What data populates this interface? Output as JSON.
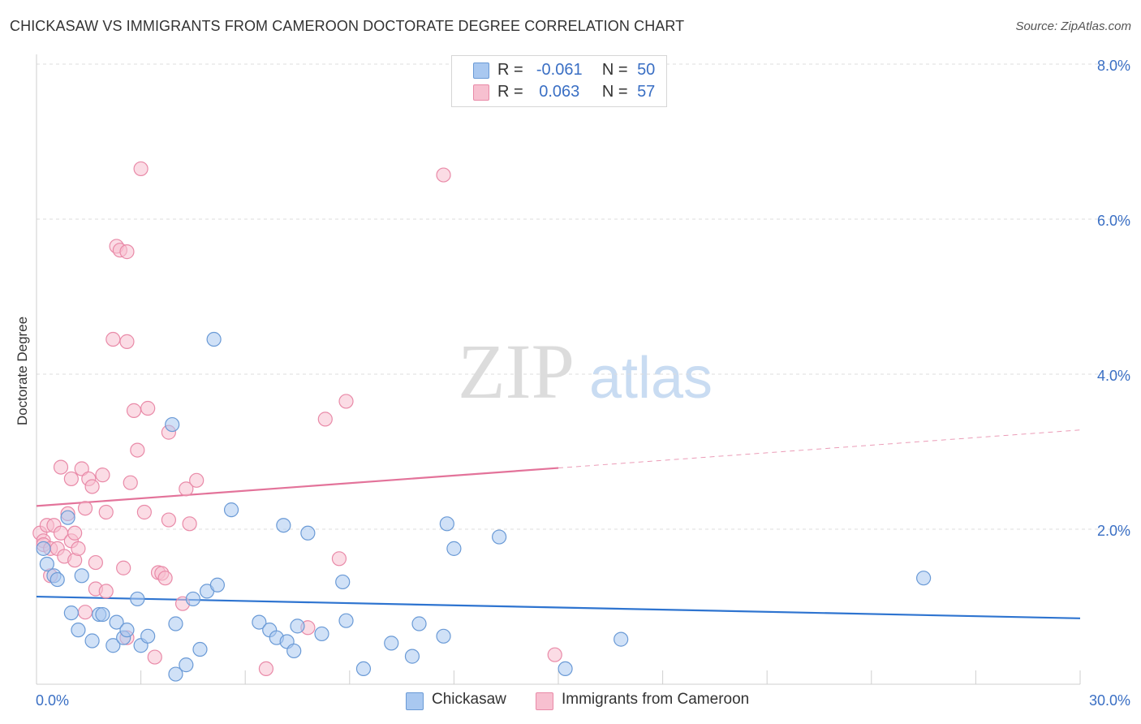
{
  "header": {
    "title": "CHICKASAW VS IMMIGRANTS FROM CAMEROON DOCTORATE DEGREE CORRELATION CHART",
    "source": "Source: ZipAtlas.com"
  },
  "colors": {
    "blue_fill": "#a9c8f0",
    "blue_stroke": "#6a9ad6",
    "blue_line": "#2e74d0",
    "pink_fill": "#f7c0d0",
    "pink_stroke": "#e98aa8",
    "pink_line": "#e3739a",
    "axis_text": "#3a6fc4",
    "grid": "#dddddd"
  },
  "legend": {
    "blue": {
      "r_label": "R =",
      "r_value": "-0.061",
      "n_label": "N =",
      "n_value": "50"
    },
    "pink": {
      "r_label": "R =",
      "r_value": "0.063",
      "n_label": "N =",
      "n_value": "57"
    }
  },
  "watermark": {
    "zip": "ZIP",
    "atlas": "atlas"
  },
  "chart_data": {
    "type": "scatter",
    "title": "CHICKASAW VS IMMIGRANTS FROM CAMEROON DOCTORATE DEGREE CORRELATION CHART",
    "xlabel": "",
    "ylabel": "Doctorate Degree",
    "xlim": [
      0,
      30
    ],
    "ylim": [
      0,
      8
    ],
    "x_tick_labels": [
      "0.0%",
      "30.0%"
    ],
    "y_ticks": [
      2,
      4,
      6,
      8
    ],
    "y_tick_labels": [
      "2.0%",
      "4.0%",
      "6.0%",
      "8.0%"
    ],
    "grid": true,
    "legend_position": "top-center",
    "series": [
      {
        "name": "Chickasaw",
        "color": "blue",
        "trend": {
          "x": [
            0,
            30
          ],
          "y": [
            1.13,
            0.85
          ],
          "dashed_from": null
        },
        "points": [
          [
            0.2,
            1.75
          ],
          [
            0.3,
            1.55
          ],
          [
            0.5,
            1.4
          ],
          [
            0.6,
            1.35
          ],
          [
            0.9,
            2.15
          ],
          [
            1.0,
            0.92
          ],
          [
            1.2,
            0.7
          ],
          [
            1.3,
            1.4
          ],
          [
            1.6,
            0.56
          ],
          [
            1.8,
            0.9
          ],
          [
            1.9,
            0.9
          ],
          [
            2.2,
            0.5
          ],
          [
            2.3,
            0.8
          ],
          [
            2.5,
            0.6
          ],
          [
            2.6,
            0.7
          ],
          [
            2.9,
            1.1
          ],
          [
            3.0,
            0.5
          ],
          [
            3.2,
            0.62
          ],
          [
            3.9,
            3.35
          ],
          [
            4.0,
            0.13
          ],
          [
            4.0,
            0.78
          ],
          [
            4.3,
            0.25
          ],
          [
            4.5,
            1.1
          ],
          [
            4.7,
            0.45
          ],
          [
            4.9,
            1.2
          ],
          [
            5.1,
            4.45
          ],
          [
            5.2,
            1.28
          ],
          [
            5.6,
            2.25
          ],
          [
            6.4,
            0.8
          ],
          [
            6.7,
            0.7
          ],
          [
            6.9,
            0.6
          ],
          [
            7.1,
            2.05
          ],
          [
            7.2,
            0.55
          ],
          [
            7.4,
            0.43
          ],
          [
            7.5,
            0.75
          ],
          [
            7.8,
            1.95
          ],
          [
            8.2,
            0.65
          ],
          [
            8.8,
            1.32
          ],
          [
            8.9,
            0.82
          ],
          [
            9.4,
            0.2
          ],
          [
            10.2,
            0.53
          ],
          [
            10.8,
            0.36
          ],
          [
            11.0,
            0.78
          ],
          [
            11.7,
            0.62
          ],
          [
            11.8,
            2.07
          ],
          [
            12.0,
            1.75
          ],
          [
            13.3,
            1.9
          ],
          [
            15.2,
            0.2
          ],
          [
            16.8,
            0.58
          ],
          [
            25.5,
            1.37
          ]
        ]
      },
      {
        "name": "Immigrants from Cameroon",
        "color": "pink",
        "trend": {
          "x": [
            0,
            30
          ],
          "y": [
            2.3,
            3.28
          ],
          "dashed_from": 15.0
        },
        "points": [
          [
            0.1,
            1.95
          ],
          [
            0.2,
            1.85
          ],
          [
            0.2,
            1.8
          ],
          [
            0.3,
            2.05
          ],
          [
            0.4,
            1.75
          ],
          [
            0.4,
            1.4
          ],
          [
            0.5,
            2.05
          ],
          [
            0.6,
            1.75
          ],
          [
            0.7,
            1.95
          ],
          [
            0.7,
            2.8
          ],
          [
            0.8,
            1.65
          ],
          [
            0.9,
            2.2
          ],
          [
            1.0,
            1.85
          ],
          [
            1.0,
            2.65
          ],
          [
            1.1,
            1.95
          ],
          [
            1.1,
            1.6
          ],
          [
            1.2,
            1.75
          ],
          [
            1.3,
            2.78
          ],
          [
            1.4,
            0.93
          ],
          [
            1.4,
            2.27
          ],
          [
            1.5,
            2.65
          ],
          [
            1.6,
            2.55
          ],
          [
            1.7,
            1.57
          ],
          [
            1.7,
            1.23
          ],
          [
            1.9,
            2.7
          ],
          [
            2.0,
            1.2
          ],
          [
            2.0,
            2.22
          ],
          [
            2.2,
            4.45
          ],
          [
            2.3,
            5.65
          ],
          [
            2.4,
            5.6
          ],
          [
            2.6,
            0.6
          ],
          [
            2.6,
            4.42
          ],
          [
            2.5,
            1.5
          ],
          [
            2.6,
            5.58
          ],
          [
            2.7,
            2.6
          ],
          [
            2.8,
            3.53
          ],
          [
            2.9,
            3.02
          ],
          [
            3.0,
            6.65
          ],
          [
            3.1,
            2.22
          ],
          [
            3.2,
            3.56
          ],
          [
            3.4,
            0.35
          ],
          [
            3.5,
            1.44
          ],
          [
            3.6,
            1.43
          ],
          [
            3.7,
            1.37
          ],
          [
            3.8,
            3.25
          ],
          [
            3.8,
            2.12
          ],
          [
            4.2,
            1.04
          ],
          [
            4.3,
            2.52
          ],
          [
            4.4,
            2.07
          ],
          [
            4.6,
            2.63
          ],
          [
            6.6,
            0.2
          ],
          [
            7.8,
            0.73
          ],
          [
            8.3,
            3.42
          ],
          [
            8.7,
            1.62
          ],
          [
            8.9,
            3.65
          ],
          [
            11.7,
            6.57
          ],
          [
            14.9,
            0.38
          ]
        ]
      }
    ]
  },
  "bottom_legend": {
    "items": [
      {
        "label": "Chickasaw",
        "color": "blue"
      },
      {
        "label": "Immigrants from Cameroon",
        "color": "pink"
      }
    ]
  }
}
